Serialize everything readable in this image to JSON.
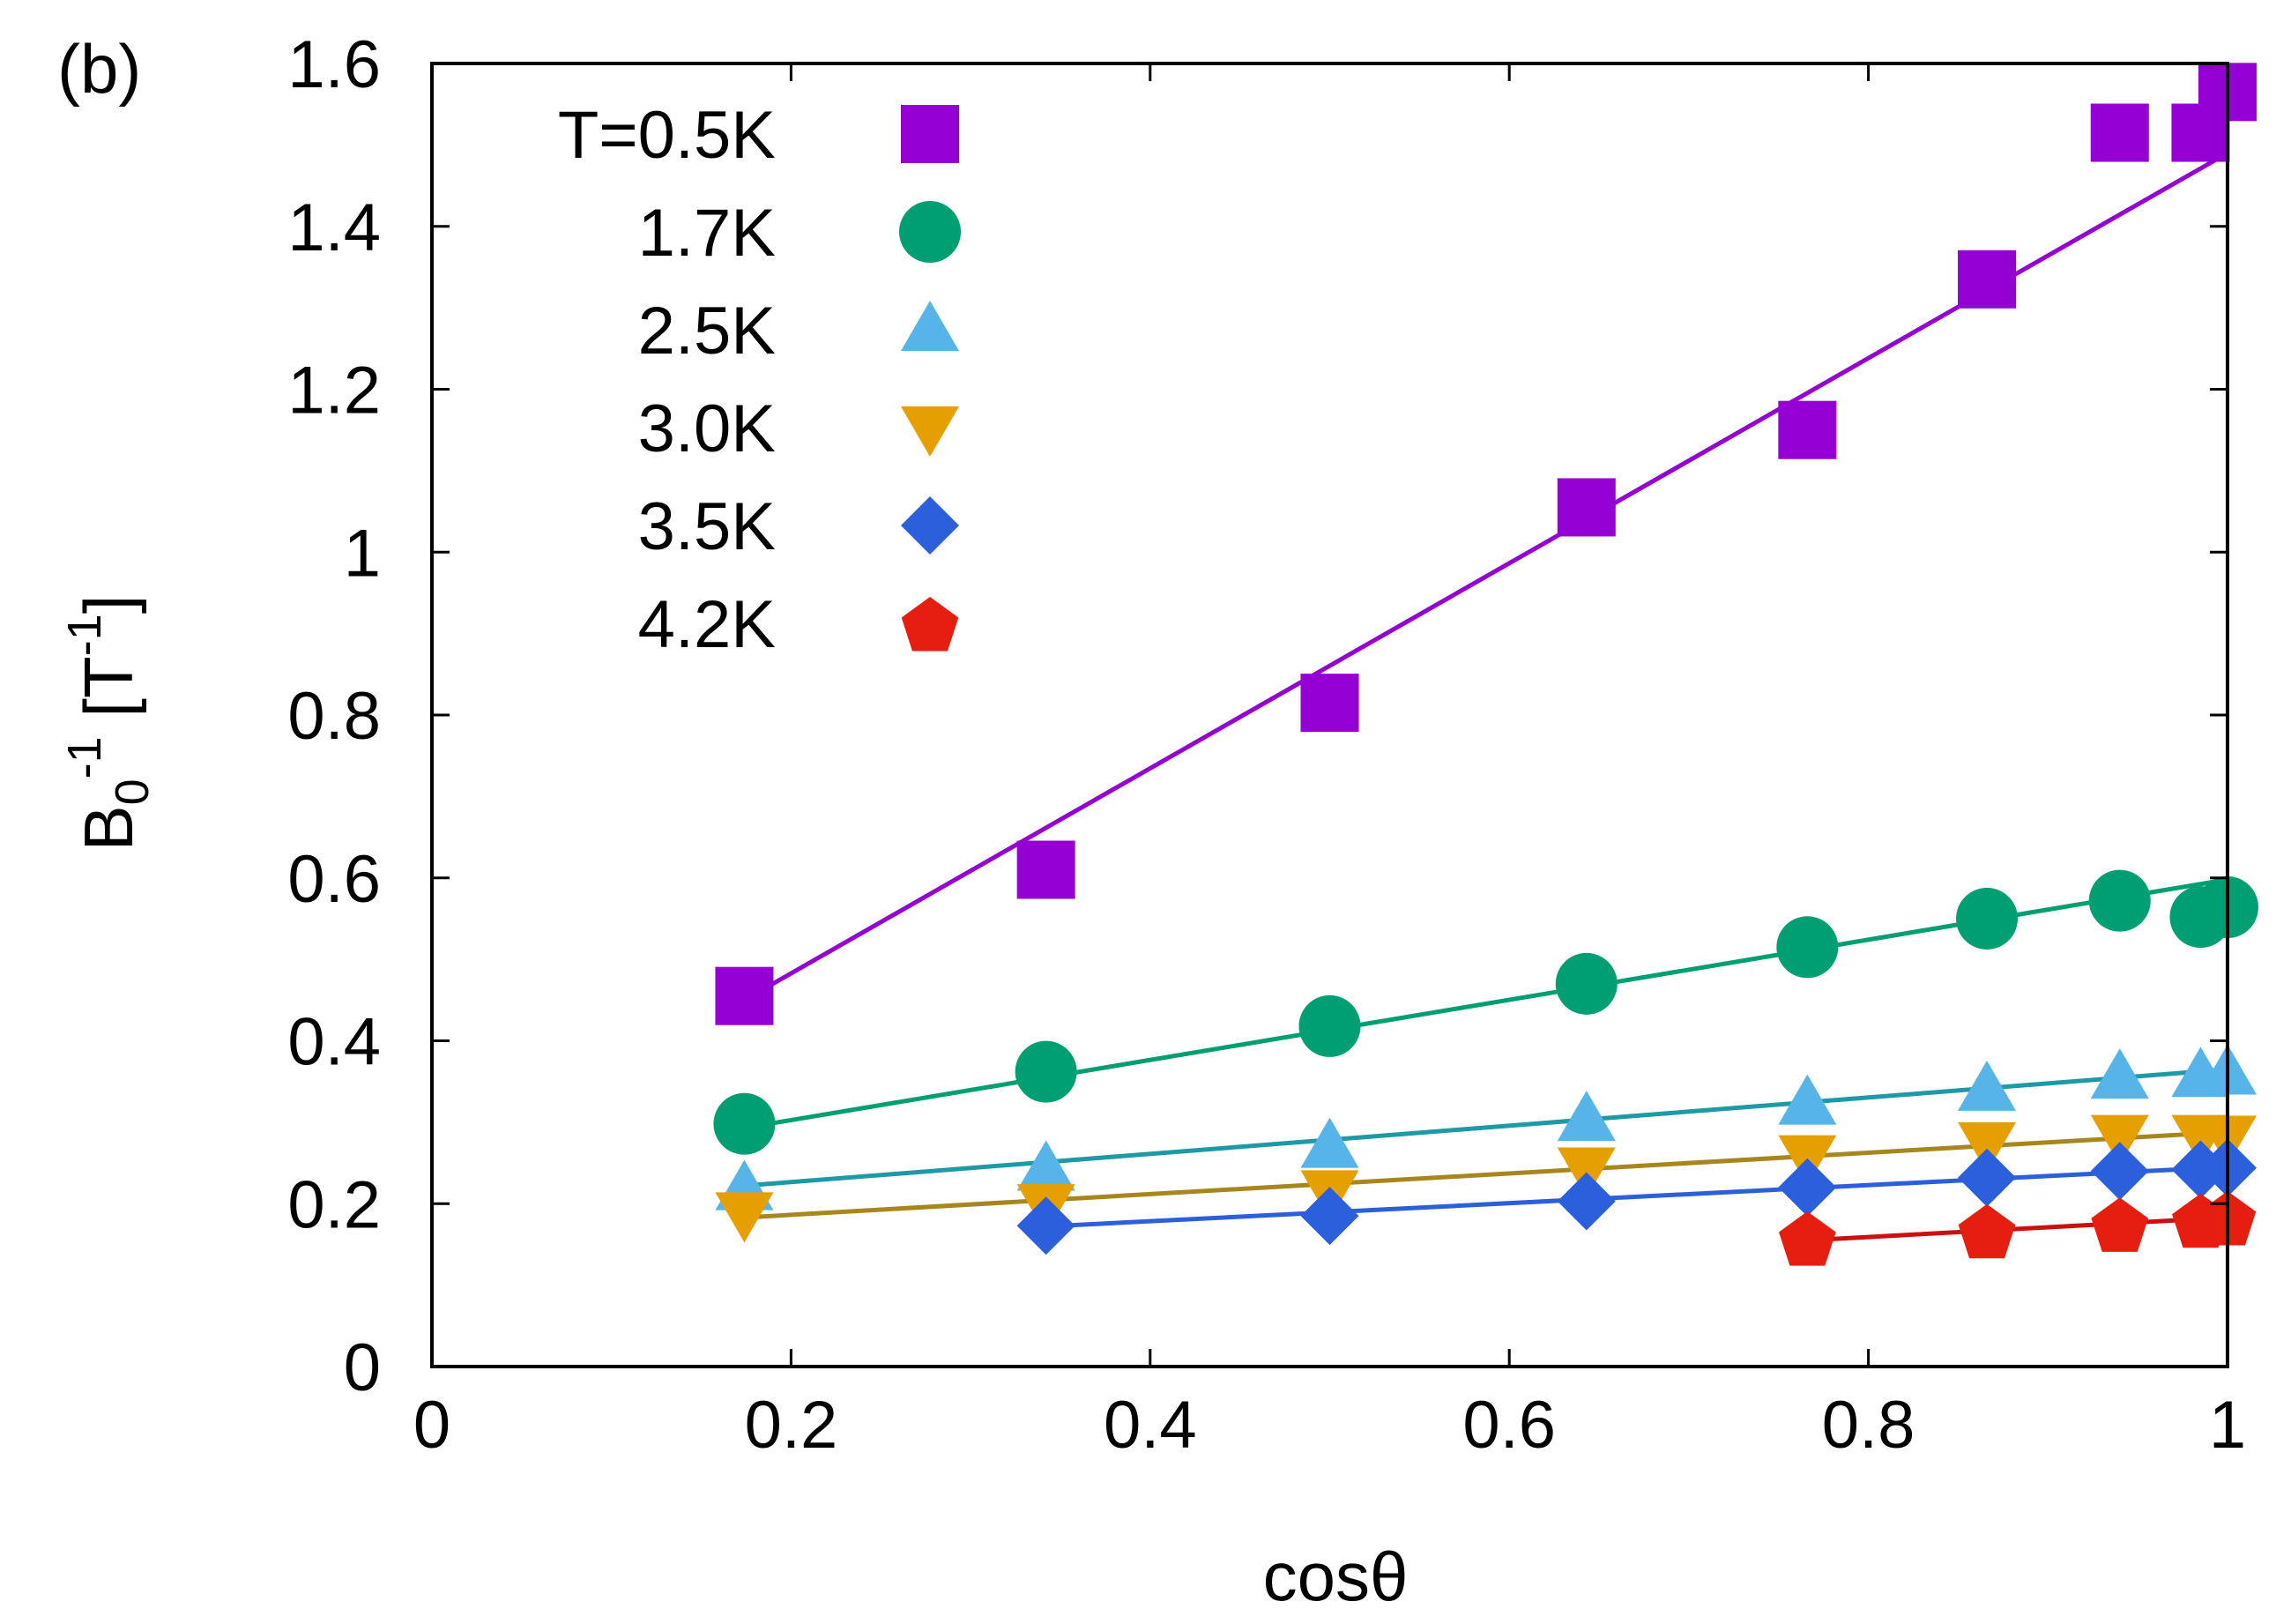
{
  "panel_label": "(b)",
  "chart_data": {
    "type": "scatter",
    "title": "",
    "xlabel": "cosθ",
    "ylabel": {
      "base": "B",
      "sub": "0",
      "sup": "-1",
      "unit_open": " [T",
      "unit_sup": "-1",
      "unit_close": "]"
    },
    "xlim": [
      0,
      1
    ],
    "ylim": [
      0,
      1.6
    ],
    "xticks": [
      0,
      0.2,
      0.4,
      0.6,
      0.8,
      1
    ],
    "xtick_labels": [
      "0",
      "0.2",
      "0.4",
      "0.6",
      "0.8",
      "1"
    ],
    "yticks": [
      0,
      0.2,
      0.4,
      0.6,
      0.8,
      1.0,
      1.2,
      1.4,
      1.6
    ],
    "ytick_labels": [
      "0",
      "0.2",
      "0.4",
      "0.6",
      "0.8",
      "1",
      "1.2",
      "1.4",
      "1.6"
    ],
    "grid": false,
    "legend_position": "top-left",
    "series": [
      {
        "name": "T=0.5K",
        "marker": "square",
        "color": "#9400D3",
        "x": [
          0.174,
          0.342,
          0.5,
          0.643,
          0.766,
          0.866,
          0.94,
          0.985,
          1.0
        ],
        "y": [
          0.455,
          0.61,
          0.815,
          1.055,
          1.15,
          1.335,
          1.515,
          1.515,
          1.565
        ],
        "fit": {
          "x": [
            0.174,
            1.0
          ],
          "y": [
            0.45,
            1.49
          ],
          "color": "#9400D3"
        }
      },
      {
        "name": "1.7K",
        "marker": "circle",
        "color": "#009E73",
        "x": [
          0.174,
          0.342,
          0.5,
          0.643,
          0.766,
          0.866,
          0.94,
          0.985,
          1.0
        ],
        "y": [
          0.298,
          0.362,
          0.418,
          0.47,
          0.515,
          0.55,
          0.572,
          0.552,
          0.564
        ],
        "fit": {
          "x": [
            0.174,
            1.0
          ],
          "y": [
            0.293,
            0.598
          ],
          "color": "#009E73"
        }
      },
      {
        "name": "2.5K",
        "marker": "triangle-up",
        "color": "#56B4E9",
        "x": [
          0.174,
          0.342,
          0.5,
          0.643,
          0.766,
          0.866,
          0.94,
          0.985,
          1.0
        ],
        "y": [
          0.218,
          0.242,
          0.27,
          0.303,
          0.323,
          0.34,
          0.355,
          0.357,
          0.36
        ],
        "fit": {
          "x": [
            0.174,
            1.0
          ],
          "y": [
            0.222,
            0.365
          ],
          "color": "#1E9AA6"
        }
      },
      {
        "name": "3.0K",
        "marker": "triangle-down",
        "color": "#E69F00",
        "x": [
          0.174,
          0.342,
          0.5,
          0.643,
          0.766,
          0.866,
          0.94,
          0.985,
          1.0
        ],
        "y": [
          0.188,
          0.198,
          0.215,
          0.243,
          0.258,
          0.274,
          0.283,
          0.283,
          0.282
        ],
        "fit": {
          "x": [
            0.174,
            1.0
          ],
          "y": [
            0.183,
            0.288
          ],
          "color": "#A8861E"
        }
      },
      {
        "name": "3.5K",
        "marker": "diamond",
        "color": "#2C5FDB",
        "x": [
          0.342,
          0.5,
          0.643,
          0.766,
          0.866,
          0.94,
          0.985,
          1.0
        ],
        "y": [
          0.173,
          0.185,
          0.203,
          0.22,
          0.232,
          0.24,
          0.242,
          0.244
        ],
        "fit": {
          "x": [
            0.342,
            1.0
          ],
          "y": [
            0.172,
            0.245
          ],
          "color": "#2C5FDB"
        }
      },
      {
        "name": "4.2K",
        "marker": "pentagon",
        "color": "#E51E10",
        "x": [
          0.766,
          0.866,
          0.94,
          0.985,
          1.0
        ],
        "y": [
          0.158,
          0.167,
          0.175,
          0.18,
          0.183
        ],
        "fit": {
          "x": [
            0.766,
            1.0
          ],
          "y": [
            0.155,
            0.183
          ],
          "color": "#CC1010"
        }
      }
    ]
  }
}
